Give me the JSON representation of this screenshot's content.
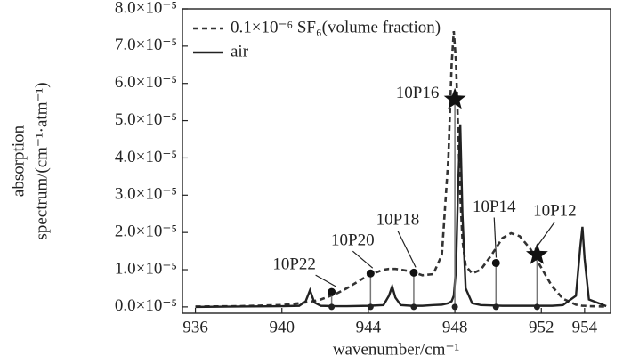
{
  "chart_data": {
    "type": "line",
    "xlabel": "wavenumber/cm⁻¹",
    "ylabel": [
      "absorption",
      "spectrum/(cm⁻¹·atm⁻¹)"
    ],
    "xlim": [
      935.4,
      955.2
    ],
    "xticks": [
      936,
      940,
      944,
      948,
      952,
      954
    ],
    "ylim": [
      -1.7e-06,
      8e-05
    ],
    "yticks": [
      {
        "value": 0,
        "label": "0.0×10⁻⁵"
      },
      {
        "value": 1e-05,
        "label": "1.0×10⁻⁵"
      },
      {
        "value": 2e-05,
        "label": "2.0×10⁻⁵"
      },
      {
        "value": 3e-05,
        "label": "3.0×10⁻⁵"
      },
      {
        "value": 4e-05,
        "label": "4.0×10⁻⁵"
      },
      {
        "value": 5e-05,
        "label": "5.0×10⁻⁵"
      },
      {
        "value": 6e-05,
        "label": "6.0×10⁻⁵"
      },
      {
        "value": 7e-05,
        "label": "7.0×10⁻⁵"
      },
      {
        "value": 8e-05,
        "label": "8.0×10⁻⁵"
      }
    ],
    "legend": "upper left",
    "x": [
      936,
      938,
      940,
      940.8,
      941.1,
      941.3,
      941.5,
      941.8,
      942.5,
      943,
      944,
      944.7,
      944.95,
      945.1,
      945.25,
      945.5,
      946,
      946.5,
      947,
      947.4,
      947.7,
      947.85,
      947.95,
      948.05,
      948.15,
      948.25,
      948.35,
      948.5,
      948.8,
      949.2,
      949.7,
      950.2,
      950.6,
      951,
      951.5,
      952,
      952.5,
      953,
      953.6,
      953.8,
      953.9,
      954,
      954.2,
      955
    ],
    "series": [
      {
        "name": "0.1×10⁻⁶ SF₆(volume fraction)",
        "color": "#333333",
        "style": "dashed",
        "values": [
          1e-07,
          2e-07,
          5e-07,
          1e-06,
          1.2e-06,
          1.4e-06,
          1.6e-06,
          2e-06,
          3.5e-06,
          5e-06,
          8.5e-06,
          1e-05,
          1.02e-05,
          1.02e-05,
          1.02e-05,
          1e-05,
          9.5e-06,
          8.5e-06,
          8.8e-06,
          1.4e-05,
          4e-05,
          6.5e-05,
          7.4e-05,
          6.6e-05,
          4.8e-05,
          3e-05,
          1.8e-05,
          1.1e-05,
          9e-06,
          1e-05,
          1.4e-05,
          1.85e-05,
          1.98e-05,
          1.9e-05,
          1.55e-05,
          1.05e-05,
          5.5e-06,
          2.2e-06,
          6e-07,
          4e-07,
          3e-07,
          3e-07,
          2e-07,
          1e-07
        ]
      },
      {
        "name": "air",
        "color": "#222222",
        "style": "solid",
        "values": [
          0,
          1e-07,
          2e-07,
          3e-07,
          1.5e-06,
          4.5e-06,
          1.2e-06,
          3e-07,
          2e-07,
          2e-07,
          3e-07,
          5e-07,
          3e-06,
          5.5e-06,
          2.5e-06,
          5e-07,
          3e-07,
          3e-07,
          5e-07,
          6e-07,
          1e-06,
          1.5e-06,
          3e-06,
          1e-05,
          3.2e-05,
          4.9e-05,
          2.5e-05,
          5e-06,
          1e-06,
          5e-07,
          4e-07,
          3e-07,
          3e-07,
          3e-07,
          3e-07,
          3e-07,
          3e-07,
          5e-07,
          3e-06,
          1.6e-05,
          2.15e-05,
          1.3e-05,
          2e-06,
          2e-07
        ]
      }
    ],
    "laser_lines": [
      {
        "label": "10P22",
        "x": 942.3,
        "value": 4e-06,
        "marker": "dot"
      },
      {
        "label": "10P20",
        "x": 944.1,
        "value": 9e-06,
        "marker": "dot"
      },
      {
        "label": "10P18",
        "x": 946.1,
        "value": 9.2e-06,
        "marker": "dot"
      },
      {
        "label": "10P16",
        "x": 948.0,
        "value": 5.57e-05,
        "marker": "star"
      },
      {
        "label": "10P14",
        "x": 949.9,
        "value": 1.18e-05,
        "marker": "dot"
      },
      {
        "label": "10P12",
        "x": 951.8,
        "value": 1.4e-05,
        "marker": "star"
      }
    ]
  }
}
